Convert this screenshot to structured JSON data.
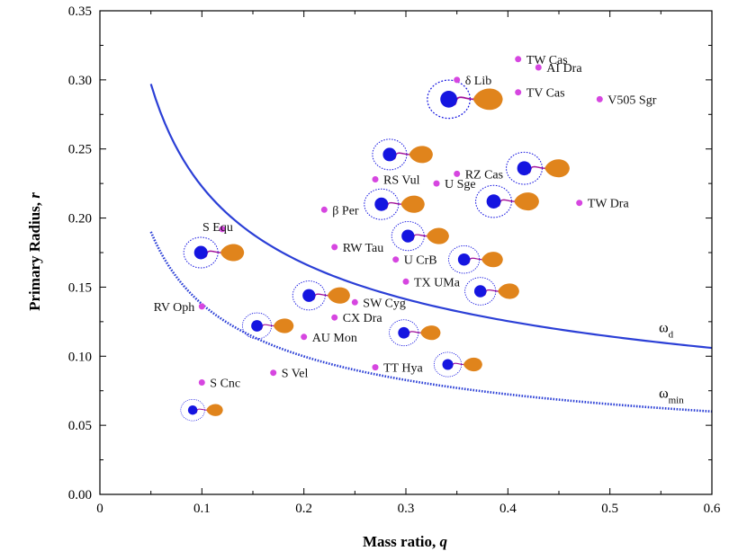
{
  "chart_data": {
    "type": "scatter",
    "xlabel_text": "Mass ratio, ",
    "xlabel_var": "q",
    "ylabel_text": "Primary Radius, ",
    "ylabel_var": "r",
    "xlim": [
      0,
      0.6
    ],
    "ylim": [
      0,
      0.35
    ],
    "x_ticks": [
      "0",
      "0.1",
      "0.2",
      "0.3",
      "0.4",
      "0.5",
      "0.6"
    ],
    "y_ticks": [
      "0.00",
      "0.05",
      "0.10",
      "0.15",
      "0.20",
      "0.25",
      "0.30",
      "0.35"
    ],
    "grid": false,
    "colors": {
      "point": "#d646e0",
      "curve": "#2b3fd6",
      "primary_star": "#1515e0",
      "secondary_star": "#e0841c",
      "stream": "#a0109a"
    },
    "points": [
      {
        "name": "TW Cas",
        "q": 0.41,
        "r": 0.315
      },
      {
        "name": "AI Dra",
        "q": 0.43,
        "r": 0.309
      },
      {
        "name": "δ Lib",
        "q": 0.35,
        "r": 0.3
      },
      {
        "name": "TV Cas",
        "q": 0.41,
        "r": 0.291
      },
      {
        "name": "V505 Sgr",
        "q": 0.49,
        "r": 0.286
      },
      {
        "name": "RZ Cas",
        "q": 0.35,
        "r": 0.232
      },
      {
        "name": "RS Vul",
        "q": 0.27,
        "r": 0.228
      },
      {
        "name": "U Sge",
        "q": 0.33,
        "r": 0.225
      },
      {
        "name": "TW Dra",
        "q": 0.47,
        "r": 0.211
      },
      {
        "name": "β Per",
        "q": 0.22,
        "r": 0.206
      },
      {
        "name": "S Equ",
        "q": 0.12,
        "r": 0.192
      },
      {
        "name": "RW Tau",
        "q": 0.23,
        "r": 0.179
      },
      {
        "name": "U CrB",
        "q": 0.29,
        "r": 0.17
      },
      {
        "name": "TX UMa",
        "q": 0.3,
        "r": 0.154
      },
      {
        "name": "SW Cyg",
        "q": 0.25,
        "r": 0.139
      },
      {
        "name": "RV Oph",
        "q": 0.1,
        "r": 0.136
      },
      {
        "name": "CX Dra",
        "q": 0.23,
        "r": 0.128
      },
      {
        "name": "AU Mon",
        "q": 0.2,
        "r": 0.114
      },
      {
        "name": "TT Hya",
        "q": 0.27,
        "r": 0.092
      },
      {
        "name": "S Vel",
        "q": 0.17,
        "r": 0.088
      },
      {
        "name": "S Cnc",
        "q": 0.1,
        "r": 0.081
      }
    ],
    "curves": [
      {
        "name": "ω",
        "subscript": "d",
        "style": "solid",
        "x_start": 0.05,
        "x_end": 0.6,
        "y_start": 0.297,
        "y_end": 0.106
      },
      {
        "name": "ω",
        "subscript": "min",
        "style": "dotted",
        "x_start": 0.05,
        "x_end": 0.6,
        "y_start": 0.19,
        "y_end": 0.06
      }
    ],
    "binary_icons": [
      {
        "q": 0.342,
        "r": 0.286,
        "scale": 1.25
      },
      {
        "q": 0.284,
        "r": 0.246,
        "scale": 1.0
      },
      {
        "q": 0.416,
        "r": 0.236,
        "scale": 1.05
      },
      {
        "q": 0.276,
        "r": 0.21,
        "scale": 1.0
      },
      {
        "q": 0.386,
        "r": 0.212,
        "scale": 1.05
      },
      {
        "q": 0.099,
        "r": 0.175,
        "scale": 1.0
      },
      {
        "q": 0.302,
        "r": 0.187,
        "scale": 0.95
      },
      {
        "q": 0.357,
        "r": 0.17,
        "scale": 0.9
      },
      {
        "q": 0.205,
        "r": 0.144,
        "scale": 0.95
      },
      {
        "q": 0.373,
        "r": 0.147,
        "scale": 0.9
      },
      {
        "q": 0.154,
        "r": 0.122,
        "scale": 0.85
      },
      {
        "q": 0.298,
        "r": 0.117,
        "scale": 0.85
      },
      {
        "q": 0.341,
        "r": 0.094,
        "scale": 0.8
      },
      {
        "q": 0.091,
        "r": 0.061,
        "scale": 0.7
      }
    ]
  }
}
